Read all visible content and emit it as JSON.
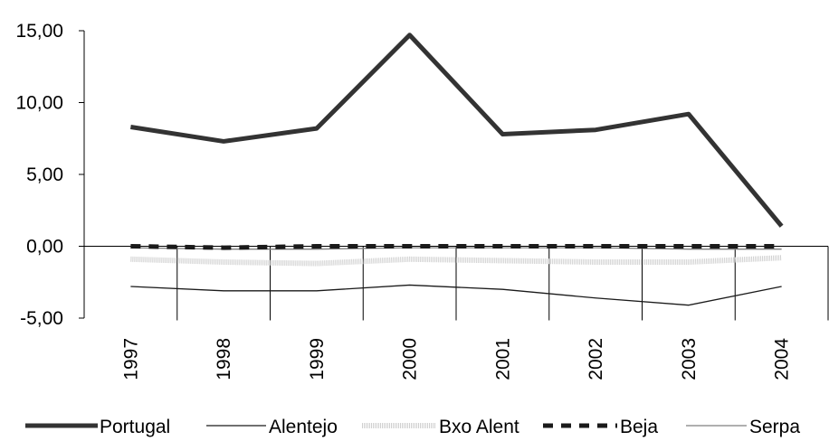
{
  "chart_data": {
    "type": "line",
    "title": "",
    "xlabel": "",
    "ylabel": "",
    "categories": [
      "1997",
      "1998",
      "1999",
      "2000",
      "2001",
      "2002",
      "2003",
      "2004"
    ],
    "ylim": [
      -5,
      15
    ],
    "yticks": [
      "-5,00",
      "0,00",
      "5,00",
      "10,00",
      "15,00"
    ],
    "ytick_values": [
      -5,
      0,
      5,
      10,
      15
    ],
    "grid": false,
    "legend_position": "bottom",
    "series": [
      {
        "name": "Portugal",
        "values": [
          8.3,
          7.3,
          8.2,
          14.7,
          7.8,
          8.1,
          9.2,
          1.4
        ],
        "color": "#333333",
        "style": "thick"
      },
      {
        "name": "Alentejo",
        "values": [
          -2.8,
          -3.1,
          -3.1,
          -2.7,
          -3.0,
          -3.6,
          -4.1,
          -2.8
        ],
        "color": "#1a1a1a",
        "style": "thin"
      },
      {
        "name": "Bxo Alent",
        "values": [
          -0.9,
          -1.1,
          -1.2,
          -0.9,
          -1.0,
          -1.1,
          -1.1,
          -0.8
        ],
        "color": "#cfcfcf",
        "style": "pattern"
      },
      {
        "name": "Beja",
        "values": [
          0.0,
          -0.1,
          0.0,
          0.0,
          0.0,
          0.0,
          0.0,
          0.0
        ],
        "color": "#1a1a1a",
        "style": "dashed"
      },
      {
        "name": "Serpa",
        "values": [
          -0.1,
          -0.2,
          -0.2,
          -0.1,
          -0.1,
          -0.1,
          -0.2,
          -0.2
        ],
        "color": "#7f7f7f",
        "style": "thin"
      }
    ]
  }
}
